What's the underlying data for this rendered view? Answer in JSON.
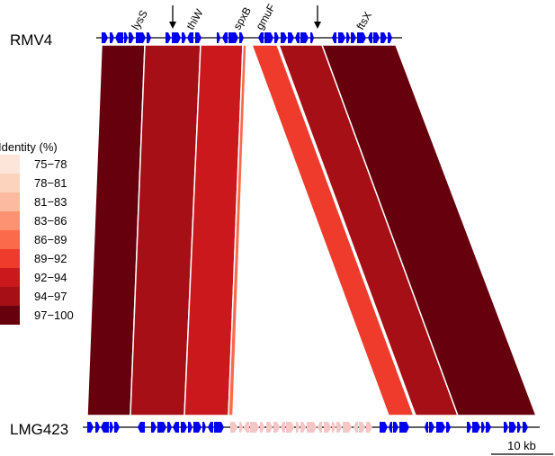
{
  "genomes": {
    "top": {
      "label": "RMV4"
    },
    "bottom": {
      "label": "LMG423"
    }
  },
  "gene_labels": [
    "lysS",
    "thiW",
    "spxB",
    "gmuF",
    "ftsX"
  ],
  "arrows": [
    "top-arrow-1",
    "top-arrow-2"
  ],
  "legend": {
    "title": "Identity (%)",
    "items": [
      {
        "label": "75−78",
        "color": "#fee5d9"
      },
      {
        "label": "78−81",
        "color": "#fcd3bd"
      },
      {
        "label": "81−83",
        "color": "#fcbba1"
      },
      {
        "label": "83−86",
        "color": "#fc9272"
      },
      {
        "label": "86−89",
        "color": "#fb6a4a"
      },
      {
        "label": "89−92",
        "color": "#ef3b2c"
      },
      {
        "label": "92−94",
        "color": "#cb181d"
      },
      {
        "label": "94−97",
        "color": "#a50f15"
      },
      {
        "label": "97−100",
        "color": "#67000d"
      }
    ]
  },
  "scale_bar": {
    "label": "10 kb"
  },
  "colors": {
    "gene": "#0000ee",
    "gene_unmatched": "#f4c6c6"
  }
}
